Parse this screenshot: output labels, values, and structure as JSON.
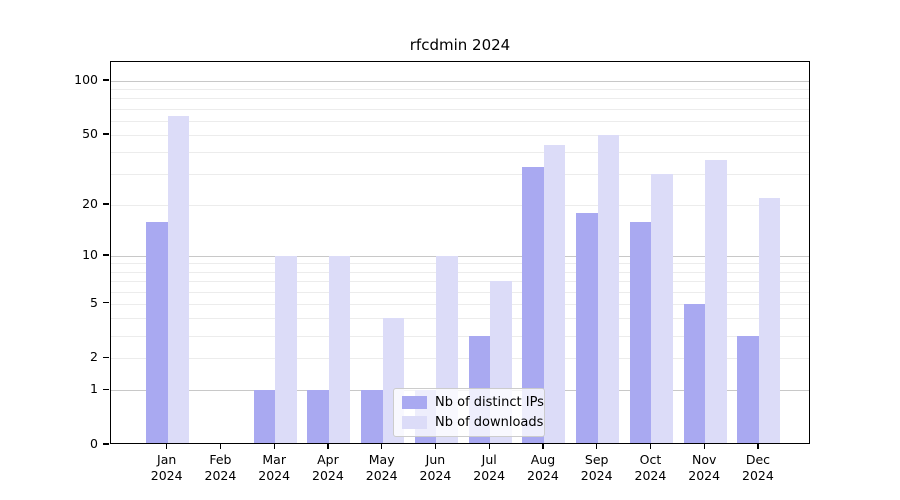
{
  "window": {
    "title": "rfcdmin 2024"
  },
  "chart_data": {
    "type": "bar",
    "title": "rfcdmin 2024",
    "categories": [
      "Jan",
      "Feb",
      "Mar",
      "Apr",
      "May",
      "Jun",
      "Jul",
      "Aug",
      "Sep",
      "Oct",
      "Nov",
      "Dec"
    ],
    "x_tick_year": "2024",
    "series": [
      {
        "name": "Nb of distinct IPs",
        "color": "#a9a9f1",
        "values": [
          16,
          0,
          1,
          1,
          1,
          1,
          3,
          33,
          18,
          16,
          5,
          3
        ]
      },
      {
        "name": "Nb of downloads",
        "color": "#dcdcf8",
        "values": [
          64,
          0,
          10,
          10,
          4,
          10,
          7,
          44,
          50,
          30,
          36,
          22
        ]
      }
    ],
    "xlabel": "",
    "ylabel": "",
    "y_scale": "log1p",
    "ylim": [
      0,
      128
    ],
    "y_axis_tick_labels": [
      100,
      50,
      20,
      10,
      5,
      2,
      1,
      0
    ],
    "y_gridlines_major": [
      1,
      10,
      100
    ],
    "y_gridlines_minor": [
      2,
      3,
      4,
      5,
      6,
      7,
      8,
      9,
      20,
      30,
      40,
      50,
      60,
      70,
      80,
      90
    ],
    "grid": true,
    "legend_position": "lower-center-inside",
    "colors": {
      "grid_major": "#c8c8c8",
      "grid_minor": "#ececec",
      "axis": "#000000",
      "background": "#ffffff"
    }
  }
}
